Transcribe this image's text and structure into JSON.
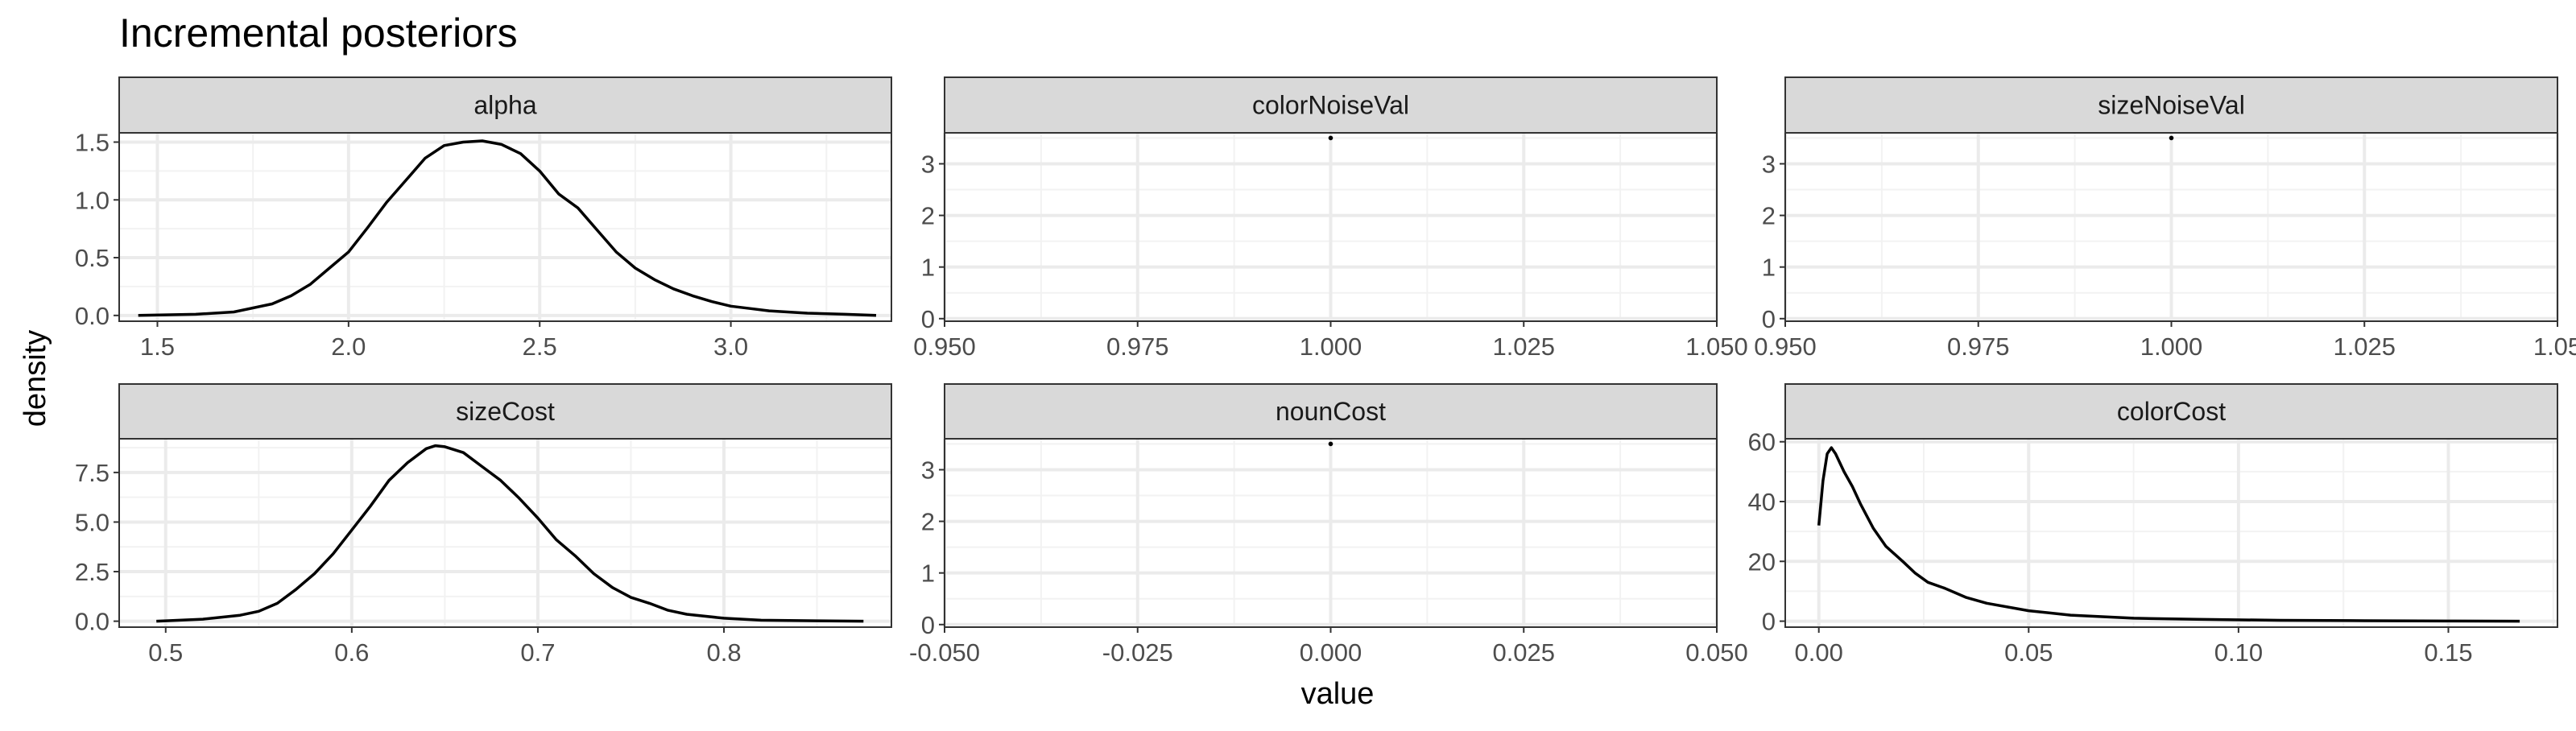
{
  "chart_data": {
    "type": "line",
    "title": "Incremental posteriors",
    "xlabel": "value",
    "ylabel": "density",
    "panels": [
      {
        "label": "alpha",
        "xlim": [
          1.4,
          3.42
        ],
        "ylim": [
          -0.05,
          1.58
        ],
        "xticks": [
          1.5,
          2.0,
          2.5,
          3.0
        ],
        "xtick_labels": [
          "1.5",
          "2.0",
          "2.5",
          "3.0"
        ],
        "yticks": [
          0.0,
          0.5,
          1.0,
          1.5
        ],
        "ytick_labels": [
          "0.0",
          "0.5",
          "1.0",
          "1.5"
        ],
        "x": [
          1.45,
          1.6,
          1.7,
          1.8,
          1.85,
          1.9,
          1.95,
          2.0,
          2.05,
          2.1,
          2.15,
          2.2,
          2.25,
          2.3,
          2.35,
          2.4,
          2.45,
          2.5,
          2.55,
          2.6,
          2.65,
          2.7,
          2.75,
          2.8,
          2.85,
          2.9,
          2.95,
          3.0,
          3.05,
          3.1,
          3.2,
          3.3,
          3.38
        ],
        "y": [
          0.0,
          0.01,
          0.03,
          0.1,
          0.17,
          0.27,
          0.41,
          0.55,
          0.76,
          0.98,
          1.17,
          1.36,
          1.47,
          1.5,
          1.51,
          1.48,
          1.4,
          1.25,
          1.05,
          0.93,
          0.74,
          0.55,
          0.41,
          0.31,
          0.23,
          0.17,
          0.12,
          0.08,
          0.06,
          0.04,
          0.02,
          0.01,
          0.0
        ]
      },
      {
        "label": "colorNoiseVal",
        "xlim": [
          0.95,
          1.05
        ],
        "ylim": [
          -0.05,
          3.6
        ],
        "xticks": [
          0.95,
          0.975,
          1.0,
          1.025,
          1.05
        ],
        "xtick_labels": [
          "0.950",
          "0.975",
          "1.000",
          "1.025",
          "1.050"
        ],
        "yticks": [
          0,
          1,
          2,
          3
        ],
        "ytick_labels": [
          "0",
          "1",
          "2",
          "3"
        ],
        "x": [
          1.0
        ],
        "y": [
          3.5
        ]
      },
      {
        "label": "sizeNoiseVal",
        "xlim": [
          0.95,
          1.05
        ],
        "ylim": [
          -0.05,
          3.6
        ],
        "xticks": [
          0.95,
          0.975,
          1.0,
          1.025,
          1.05
        ],
        "xtick_labels": [
          "0.950",
          "0.975",
          "1.000",
          "1.025",
          "1.05"
        ],
        "yticks": [
          0,
          1,
          2,
          3
        ],
        "ytick_labels": [
          "0",
          "1",
          "2",
          "3"
        ],
        "x": [
          1.0
        ],
        "y": [
          3.5
        ]
      },
      {
        "label": "sizeCost",
        "xlim": [
          0.475,
          0.89
        ],
        "ylim": [
          -0.3,
          9.2
        ],
        "xticks": [
          0.5,
          0.6,
          0.7,
          0.8
        ],
        "xtick_labels": [
          "0.5",
          "0.6",
          "0.7",
          "0.8"
        ],
        "yticks": [
          0.0,
          2.5,
          5.0,
          7.5
        ],
        "ytick_labels": [
          "0.0",
          "2.5",
          "5.0",
          "7.5"
        ],
        "x": [
          0.495,
          0.52,
          0.54,
          0.55,
          0.56,
          0.57,
          0.58,
          0.59,
          0.6,
          0.61,
          0.62,
          0.63,
          0.64,
          0.645,
          0.65,
          0.66,
          0.67,
          0.68,
          0.69,
          0.7,
          0.71,
          0.72,
          0.73,
          0.74,
          0.75,
          0.76,
          0.77,
          0.78,
          0.8,
          0.82,
          0.85,
          0.875
        ],
        "y": [
          0.0,
          0.1,
          0.3,
          0.5,
          0.9,
          1.6,
          2.4,
          3.4,
          4.6,
          5.8,
          7.1,
          8.0,
          8.7,
          8.85,
          8.8,
          8.5,
          7.8,
          7.1,
          6.2,
          5.2,
          4.1,
          3.3,
          2.4,
          1.7,
          1.2,
          0.9,
          0.55,
          0.35,
          0.15,
          0.05,
          0.02,
          0.0
        ]
      },
      {
        "label": "nounCost",
        "xlim": [
          -0.05,
          0.05
        ],
        "ylim": [
          -0.05,
          3.6
        ],
        "xticks": [
          -0.05,
          -0.025,
          0.0,
          0.025,
          0.05
        ],
        "xtick_labels": [
          "-0.050",
          "-0.025",
          "0.000",
          "0.025",
          "0.050"
        ],
        "yticks": [
          0,
          1,
          2,
          3
        ],
        "ytick_labels": [
          "0",
          "1",
          "2",
          "3"
        ],
        "x": [
          0.0
        ],
        "y": [
          3.5
        ]
      },
      {
        "label": "colorCost",
        "xlim": [
          -0.008,
          0.176
        ],
        "ylim": [
          -2,
          61
        ],
        "xticks": [
          0.0,
          0.05,
          0.1,
          0.15
        ],
        "xtick_labels": [
          "0.00",
          "0.05",
          "0.10",
          "0.15"
        ],
        "yticks": [
          0,
          20,
          40,
          60
        ],
        "ytick_labels": [
          "0",
          "20",
          "40",
          "60"
        ],
        "x": [
          0.0,
          0.001,
          0.002,
          0.003,
          0.004,
          0.006,
          0.008,
          0.01,
          0.013,
          0.016,
          0.02,
          0.023,
          0.026,
          0.03,
          0.035,
          0.04,
          0.05,
          0.06,
          0.075,
          0.09,
          0.11,
          0.13,
          0.15,
          0.167
        ],
        "y": [
          32,
          47,
          56,
          58,
          56,
          50,
          45,
          39,
          31,
          25,
          20,
          16,
          13,
          11,
          8,
          6,
          3.5,
          2,
          1,
          0.6,
          0.3,
          0.15,
          0.05,
          0.0
        ]
      }
    ]
  }
}
